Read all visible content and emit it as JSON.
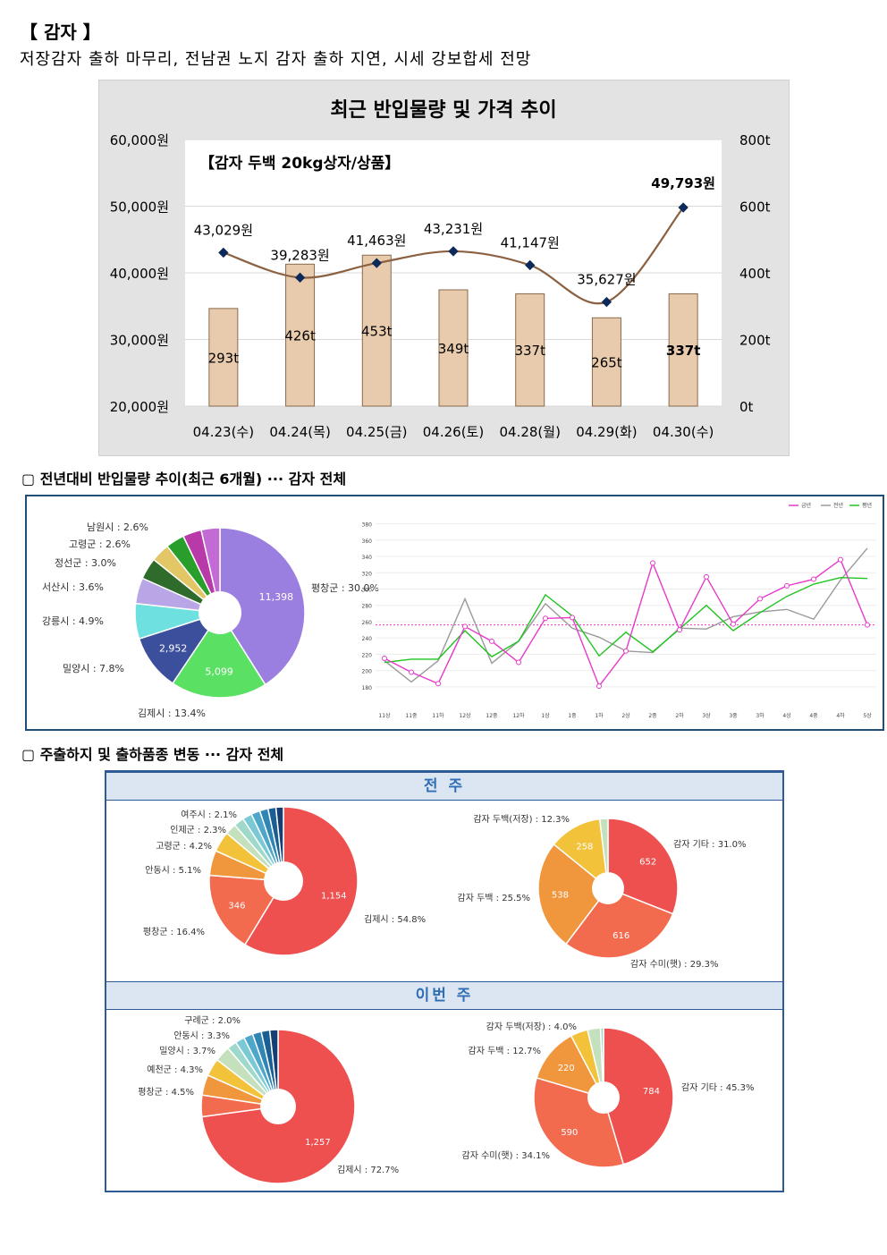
{
  "header": {
    "title": "【 감자 】",
    "subtitle": "저장감자 출하 마무리, 전남권 노지 감자 출하 지연, 시세 강보합세 전망"
  },
  "sections": {
    "yoy_title": "▢ 전년대비 반입물량 추이(최근 6개월) ··· 감자 전체",
    "origin_title": "▢ 주출하지 및 출하품종 변동 ··· 감자 전체",
    "prev_week_label": "전 주",
    "this_week_label": "이번 주"
  },
  "colors": {
    "bar_fill": "#e8cbad",
    "bar_stroke": "#8a6a4c",
    "price_line": "#8b6142",
    "price_marker": "#0b2a5a",
    "line_this_year": "#e63ac9",
    "line_last_year": "#9a9a9a",
    "line_avg": "#1fc41f"
  },
  "chart_data": [
    {
      "id": "recent",
      "type": "bar",
      "title": "최근 반입물량 및 가격 추이",
      "inner_label": "【감자 두백 20kg상자/상품】",
      "categories": [
        "04.23(수)",
        "04.24(목)",
        "04.25(금)",
        "04.26(토)",
        "04.28(월)",
        "04.29(화)",
        "04.30(수)"
      ],
      "series": [
        {
          "name": "반입물량",
          "axis": "right",
          "type": "bar",
          "values": [
            293,
            426,
            453,
            349,
            337,
            265,
            337
          ],
          "labels": [
            "293t",
            "426t",
            "453t",
            "349t",
            "337t",
            "265t",
            "337t"
          ]
        },
        {
          "name": "가격",
          "axis": "left",
          "type": "line",
          "values": [
            43029,
            39283,
            41463,
            43231,
            41147,
            35627,
            49793
          ],
          "labels": [
            "43,029원",
            "39,283원",
            "41,463원",
            "43,231원",
            "41,147원",
            "35,627원",
            "49,793원"
          ]
        }
      ],
      "ylim_left": [
        20000,
        60000
      ],
      "ylim_right": [
        0,
        800
      ],
      "yticks_left": [
        "20,000원",
        "30,000원",
        "40,000원",
        "50,000원",
        "60,000원"
      ],
      "yticks_right": [
        "0t",
        "200t",
        "400t",
        "600t",
        "800t"
      ]
    },
    {
      "id": "yoy_pie",
      "type": "pie",
      "slices": [
        {
          "label": "평창군 : 30.0%",
          "value": 11398,
          "value_label": "11,398",
          "color": "#9b7fe0"
        },
        {
          "label": "김제시 : 13.4%",
          "value": 5099,
          "value_label": "5,099",
          "color": "#5ae063"
        },
        {
          "label": "밀양시 : 7.8%",
          "value": 2952,
          "value_label": "2,952",
          "color": "#3b4f9c"
        },
        {
          "label": "강릉시 : 4.9%",
          "value": 1862,
          "value_label": "",
          "color": "#6fe0e0"
        },
        {
          "label": "서산시 : 3.6%",
          "value": 1368,
          "value_label": "",
          "color": "#b9a6e6"
        },
        {
          "label": "정선군 : 3.0%",
          "value": 1140,
          "value_label": "",
          "color": "#2f6b2a"
        },
        {
          "label": "고령군 : 2.6%",
          "value": 988,
          "value_label": "",
          "color": "#e3c766"
        },
        {
          "label": "남원시 : 2.6%",
          "value": 988,
          "value_label": "",
          "color": "#2a9e2a"
        },
        {
          "label": "",
          "value": 988,
          "value_label": "",
          "color": "#b83aa8"
        },
        {
          "label": "",
          "value": 988,
          "value_label": "",
          "color": "#c26bd4"
        }
      ]
    },
    {
      "id": "yoy_line",
      "type": "line",
      "legend": [
        "금년",
        "전년",
        "평년"
      ],
      "x": [
        "11상",
        "11중",
        "11하",
        "12상",
        "12중",
        "12하",
        "1상",
        "1중",
        "1하",
        "2상",
        "2중",
        "2하",
        "3상",
        "3중",
        "3하",
        "4상",
        "4중",
        "4하",
        "5상"
      ],
      "yticks": [
        "180",
        "200",
        "220",
        "240",
        "260",
        "280",
        "300",
        "320",
        "340",
        "360",
        "380"
      ],
      "ylim": [
        170,
        385
      ],
      "avg_line": 256,
      "series": [
        {
          "name": "금년",
          "values": [
            215,
            198,
            184,
            254,
            236,
            210,
            264,
            265,
            181,
            224,
            332,
            250,
            315,
            257,
            288,
            304,
            312,
            336,
            256
          ]
        },
        {
          "name": "전년",
          "values": [
            212,
            186,
            212,
            288,
            209,
            236,
            282,
            252,
            241,
            224,
            222,
            252,
            251,
            266,
            272,
            275,
            263,
            311,
            350
          ]
        },
        {
          "name": "평년",
          "values": [
            210,
            214,
            214,
            249,
            217,
            236,
            293,
            267,
            218,
            247,
            223,
            251,
            280,
            249,
            271,
            291,
            306,
            314,
            313
          ]
        }
      ]
    },
    {
      "id": "prev_region",
      "type": "pie",
      "slices": [
        {
          "label": "김제시 : 54.8%",
          "value": 1154,
          "value_label": "1,154",
          "color": "#ee4f4f"
        },
        {
          "label": "평창군 : 16.4%",
          "value": 346,
          "value_label": "346",
          "color": "#f26b4f"
        },
        {
          "label": "안동시 : 5.1%",
          "value": 107,
          "value_label": "",
          "color": "#f0963c"
        },
        {
          "label": "고령군 : 4.2%",
          "value": 88,
          "value_label": "",
          "color": "#f2c23a"
        },
        {
          "label": "인제군 : 2.3%",
          "value": 48,
          "value_label": "",
          "color": "#c4e0bd"
        },
        {
          "label": "여주시 : 2.1%",
          "value": 44,
          "value_label": "",
          "color": "#9fd9cc"
        },
        {
          "label": "",
          "value": 40,
          "value_label": "",
          "color": "#7cc9d6"
        },
        {
          "label": "",
          "value": 38,
          "value_label": "",
          "color": "#4ea7c9"
        },
        {
          "label": "",
          "value": 36,
          "value_label": "",
          "color": "#2f85b3"
        },
        {
          "label": "",
          "value": 34,
          "value_label": "",
          "color": "#1a5f94"
        },
        {
          "label": "",
          "value": 32,
          "value_label": "",
          "color": "#163e72"
        }
      ]
    },
    {
      "id": "prev_variety",
      "type": "pie",
      "slices": [
        {
          "label": "감자 기타 : 31.0%",
          "value": 652,
          "value_label": "652",
          "color": "#ee4f4f"
        },
        {
          "label": "감자 수미(햇) : 29.3%",
          "value": 616,
          "value_label": "616",
          "color": "#f26b4f"
        },
        {
          "label": "감자 두백 : 25.5%",
          "value": 538,
          "value_label": "538",
          "color": "#f0963c"
        },
        {
          "label": "감자 두백(저장) : 12.3%",
          "value": 258,
          "value_label": "258",
          "color": "#f2c23a"
        },
        {
          "label": "",
          "value": 40,
          "value_label": "",
          "color": "#c4e0bd"
        }
      ]
    },
    {
      "id": "this_region",
      "type": "pie",
      "slices": [
        {
          "label": "김제시 : 72.7%",
          "value": 1257,
          "value_label": "1,257",
          "color": "#ee4f4f"
        },
        {
          "label": "평창군 : 4.5%",
          "value": 78,
          "value_label": "",
          "color": "#f26b4f"
        },
        {
          "label": "예천군 : 4.3%",
          "value": 74,
          "value_label": "",
          "color": "#f0963c"
        },
        {
          "label": "밀양시 : 3.7%",
          "value": 64,
          "value_label": "",
          "color": "#f2c23a"
        },
        {
          "label": "안동시 : 3.3%",
          "value": 57,
          "value_label": "",
          "color": "#c4e0bd"
        },
        {
          "label": "구례군 : 2.0%",
          "value": 35,
          "value_label": "",
          "color": "#9fd9cc"
        },
        {
          "label": "",
          "value": 34,
          "value_label": "",
          "color": "#7cc9d6"
        },
        {
          "label": "",
          "value": 33,
          "value_label": "",
          "color": "#4ea7c9"
        },
        {
          "label": "",
          "value": 32,
          "value_label": "",
          "color": "#2f85b3"
        },
        {
          "label": "",
          "value": 31,
          "value_label": "",
          "color": "#1a5f94"
        },
        {
          "label": "",
          "value": 30,
          "value_label": "",
          "color": "#163e72"
        }
      ]
    },
    {
      "id": "this_variety",
      "type": "pie",
      "slices": [
        {
          "label": "감자 기타 : 45.3%",
          "value": 784,
          "value_label": "784",
          "color": "#ee4f4f"
        },
        {
          "label": "감자 수미(햇) : 34.1%",
          "value": 590,
          "value_label": "590",
          "color": "#f26b4f"
        },
        {
          "label": "감자 두백 : 12.7%",
          "value": 220,
          "value_label": "220",
          "color": "#f0963c"
        },
        {
          "label": "감자 두백(저장) : 4.0%",
          "value": 69,
          "value_label": "",
          "color": "#f2c23a"
        },
        {
          "label": "",
          "value": 52,
          "value_label": "",
          "color": "#c4e0bd"
        },
        {
          "label": "",
          "value": 12,
          "value_label": "",
          "color": "#9fd9cc"
        }
      ]
    }
  ]
}
